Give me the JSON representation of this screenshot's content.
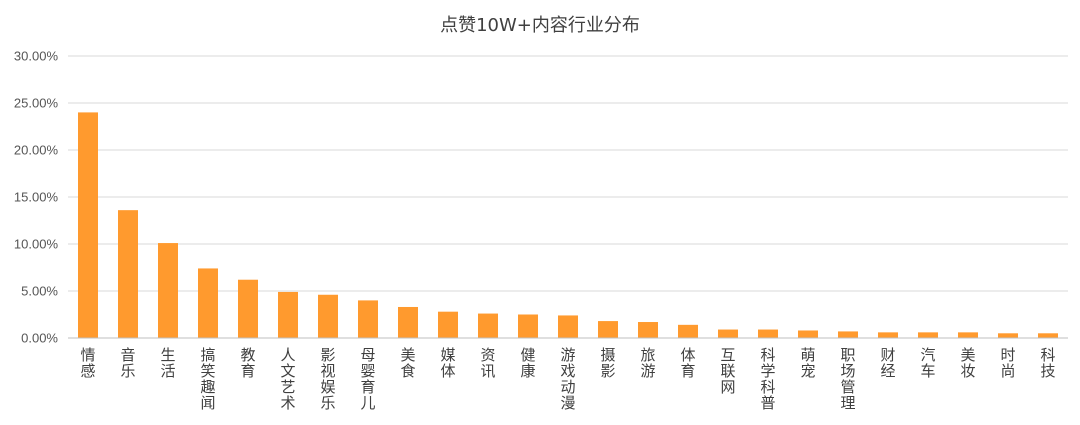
{
  "chart_data": {
    "type": "bar",
    "title": "点赞10W+内容行业分布",
    "xlabel": "",
    "ylabel": "",
    "ylim": [
      0,
      30
    ],
    "yticks": [
      "0.00%",
      "5.00%",
      "10.00%",
      "15.00%",
      "20.00%",
      "25.00%",
      "30.00%"
    ],
    "grid": true,
    "legend": "none",
    "bar_color": "#FF9A2E",
    "categories": [
      "情感",
      "音乐",
      "生活",
      "搞笑趣闻",
      "教育",
      "人文艺术",
      "影视娱乐",
      "母婴育儿",
      "美食",
      "媒体",
      "资讯",
      "健康",
      "游戏动漫",
      "摄影",
      "旅游",
      "体育",
      "互联网",
      "科学科普",
      "萌宠",
      "职场管理",
      "财经",
      "汽车",
      "美妆",
      "时尚",
      "科技"
    ],
    "values": [
      24.0,
      13.6,
      10.1,
      7.4,
      6.2,
      4.9,
      4.6,
      4.0,
      3.3,
      2.8,
      2.6,
      2.5,
      2.4,
      1.8,
      1.7,
      1.4,
      0.9,
      0.9,
      0.8,
      0.7,
      0.6,
      0.6,
      0.6,
      0.5,
      0.5
    ]
  }
}
